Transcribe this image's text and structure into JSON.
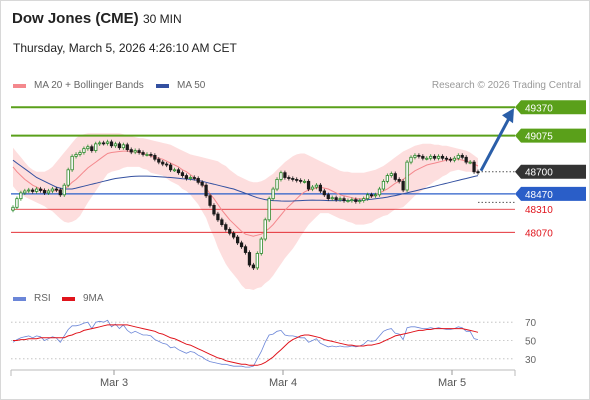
{
  "header": {
    "title": "Dow Jones (CME)",
    "timeframe": "30 MIN",
    "datetime": "Thursday, March 5, 2026 4:26:10 AM CET",
    "credit": "Research © 2026 Trading Central"
  },
  "colors": {
    "ma20": "#f4888d",
    "band_fill": "#fdd8d8",
    "ma50": "#3350a0",
    "resistance": "#5aa01a",
    "support_current": "#2a5ec8",
    "support": "#e0141c",
    "current": "#333333",
    "candle": "#2a8a2a",
    "rsi": "#6b86d8",
    "rsi_ma": "#e0141c",
    "arrow": "#2a5ea8"
  },
  "legend": {
    "ma20_label": "MA 20 + Bollinger Bands",
    "ma50_label": "MA 50",
    "rsi_label": "RSI",
    "rsi_ma_label": "9MA"
  },
  "chart_data": {
    "type": "candlestick",
    "price_range": [
      47470,
      49550
    ],
    "levels": [
      {
        "value": 49370,
        "label": "49370",
        "kind": "resistance"
      },
      {
        "value": 49075,
        "label": "49075",
        "kind": "resistance"
      },
      {
        "value": 48700,
        "label": "48700",
        "kind": "current"
      },
      {
        "value": 48470,
        "label": "48470",
        "kind": "support_current"
      },
      {
        "value": 48310,
        "label": "48310",
        "kind": "support"
      },
      {
        "value": 48070,
        "label": "48070",
        "kind": "support"
      }
    ],
    "x_ticks": [
      "Mar 3",
      "Mar 4",
      "Mar 5"
    ],
    "close": [
      48330,
      48420,
      48480,
      48500,
      48510,
      48495,
      48520,
      48505,
      48480,
      48500,
      48520,
      48510,
      48460,
      48560,
      48720,
      48860,
      48880,
      48900,
      48940,
      48960,
      48920,
      48990,
      49000,
      48995,
      49010,
      48970,
      48990,
      48950,
      48980,
      48930,
      48905,
      48920,
      48900,
      48880,
      48880,
      48870,
      48830,
      48800,
      48780,
      48770,
      48720,
      48720,
      48690,
      48660,
      48630,
      48640,
      48630,
      48590,
      48560,
      48450,
      48350,
      48260,
      48200,
      48150,
      48100,
      48060,
      48020,
      47960,
      47920,
      47860,
      47730,
      47700,
      47850,
      48000,
      48200,
      48420,
      48520,
      48620,
      48690,
      48640,
      48630,
      48620,
      48610,
      48600,
      48600,
      48520,
      48540,
      48560,
      48500,
      48460,
      48420,
      48430,
      48410,
      48420,
      48400,
      48400,
      48410,
      48390,
      48400,
      48420,
      48460,
      48450,
      48460,
      48520,
      48600,
      48660,
      48680,
      48620,
      48600,
      48510,
      48800,
      48850,
      48870,
      48860,
      48840,
      48840,
      48860,
      48840,
      48860,
      48840,
      48830,
      48820,
      48840,
      48870,
      48850,
      48800,
      48800,
      48700,
      48690
    ],
    "ma20": [
      48750,
      48700,
      48660,
      48620,
      48590,
      48560,
      48540,
      48520,
      48505,
      48500,
      48500,
      48505,
      48510,
      48520,
      48550,
      48590,
      48620,
      48660,
      48700,
      48740,
      48770,
      48800,
      48830,
      48860,
      48890,
      48900,
      48905,
      48910,
      48915,
      48915,
      48910,
      48905,
      48900,
      48890,
      48880,
      48860,
      48850,
      48840,
      48830,
      48810,
      48790,
      48770,
      48750,
      48720,
      48700,
      48670,
      48640,
      48610,
      48570,
      48530,
      48470,
      48420,
      48360,
      48300,
      48250,
      48200,
      48160,
      48120,
      48080,
      48050,
      48040,
      48030,
      48040,
      48050,
      48080,
      48110,
      48150,
      48200,
      48250,
      48300,
      48340,
      48380,
      48420,
      48460,
      48490,
      48510,
      48520,
      48530,
      48540,
      48530,
      48520,
      48500,
      48480,
      48460,
      48450,
      48440,
      48430,
      48420,
      48420,
      48420,
      48430,
      48440,
      48460,
      48480,
      48500,
      48520,
      48550,
      48580,
      48600,
      48620,
      48650,
      48680,
      48710,
      48730,
      48750,
      48770,
      48780,
      48790,
      48800,
      48810,
      48820,
      48830,
      48830,
      48830,
      48820,
      48810,
      48800,
      48780,
      48760
    ],
    "band_upper": [
      48950,
      48900,
      48850,
      48800,
      48750,
      48720,
      48700,
      48700,
      48700,
      48720,
      48750,
      48800,
      48850,
      48900,
      48950,
      49000,
      49050,
      49080,
      49090,
      49100,
      49100,
      49100,
      49100,
      49100,
      49100,
      49100,
      49100,
      49100,
      49090,
      49080,
      49070,
      49060,
      49050,
      49050,
      49040,
      49030,
      49020,
      49010,
      49000,
      48990,
      48980,
      48960,
      48940,
      48920,
      48900,
      48880,
      48870,
      48860,
      48850,
      48840,
      48830,
      48820,
      48810,
      48780,
      48760,
      48720,
      48690,
      48660,
      48640,
      48620,
      48600,
      48590,
      48590,
      48600,
      48620,
      48650,
      48680,
      48720,
      48760,
      48800,
      48830,
      48860,
      48880,
      48890,
      48890,
      48870,
      48850,
      48830,
      48810,
      48790,
      48770,
      48750,
      48730,
      48710,
      48700,
      48700,
      48690,
      48690,
      48690,
      48690,
      48700,
      48710,
      48720,
      48740,
      48760,
      48790,
      48820,
      48850,
      48880,
      48910,
      48930,
      48950,
      48970,
      48980,
      48990,
      48990,
      48990,
      48980,
      48980,
      48970,
      48970,
      48960,
      48950,
      48940,
      48930,
      48920,
      48900,
      48870,
      48840
    ],
    "band_lower": [
      48550,
      48500,
      48470,
      48440,
      48420,
      48400,
      48380,
      48360,
      48340,
      48310,
      48290,
      48250,
      48210,
      48180,
      48170,
      48180,
      48200,
      48240,
      48310,
      48380,
      48440,
      48500,
      48560,
      48620,
      48680,
      48700,
      48710,
      48720,
      48740,
      48750,
      48750,
      48750,
      48750,
      48730,
      48720,
      48690,
      48680,
      48670,
      48660,
      48630,
      48600,
      48580,
      48560,
      48520,
      48500,
      48460,
      48410,
      48360,
      48290,
      48220,
      48110,
      48020,
      47910,
      47820,
      47740,
      47680,
      47630,
      47580,
      47520,
      47480,
      47480,
      47470,
      47490,
      47500,
      47540,
      47570,
      47620,
      47680,
      47740,
      47800,
      47850,
      47900,
      47960,
      48030,
      48090,
      48150,
      48190,
      48230,
      48270,
      48270,
      48270,
      48250,
      48230,
      48210,
      48200,
      48180,
      48170,
      48150,
      48150,
      48150,
      48160,
      48170,
      48200,
      48220,
      48240,
      48250,
      48280,
      48310,
      48320,
      48330,
      48370,
      48410,
      48450,
      48480,
      48510,
      48550,
      48570,
      48600,
      48620,
      48650,
      48670,
      48700,
      48710,
      48720,
      48710,
      48700,
      48700,
      48690,
      48680
    ],
    "ma50": [
      48820,
      48790,
      48760,
      48730,
      48700,
      48670,
      48640,
      48620,
      48600,
      48580,
      48560,
      48540,
      48530,
      48520,
      48520,
      48520,
      48530,
      48540,
      48550,
      48560,
      48570,
      48580,
      48590,
      48600,
      48610,
      48620,
      48630,
      48635,
      48640,
      48645,
      48650,
      48652,
      48655,
      48655,
      48655,
      48652,
      48650,
      48648,
      48645,
      48642,
      48640,
      48636,
      48632,
      48628,
      48624,
      48620,
      48615,
      48610,
      48600,
      48590,
      48580,
      48570,
      48560,
      48550,
      48540,
      48530,
      48520,
      48505,
      48490,
      48475,
      48460,
      48445,
      48430,
      48420,
      48410,
      48405,
      48400,
      48398,
      48396,
      48395,
      48395,
      48396,
      48398,
      48400,
      48402,
      48404,
      48405,
      48404,
      48403,
      48402,
      48400,
      48400,
      48400,
      48400,
      48400,
      48400,
      48400,
      48402,
      48404,
      48406,
      48410,
      48414,
      48418,
      48424,
      48430,
      48436,
      48444,
      48452,
      48460,
      48470,
      48480,
      48490,
      48500,
      48510,
      48520,
      48530,
      48540,
      48550,
      48560,
      48570,
      48580,
      48590,
      48600,
      48610,
      48620,
      48630,
      48640,
      48650,
      48660
    ],
    "rsi": {
      "levels": [
        70,
        50,
        30
      ],
      "range": [
        20,
        80
      ],
      "rsi": [
        48,
        51,
        53,
        54,
        55,
        53,
        55,
        54,
        50,
        52,
        54,
        53,
        48,
        55,
        62,
        66,
        66,
        67,
        69,
        70,
        63,
        70,
        71,
        70,
        72,
        65,
        68,
        63,
        67,
        61,
        58,
        60,
        58,
        56,
        56,
        55,
        51,
        49,
        47,
        46,
        42,
        43,
        40,
        38,
        36,
        38,
        37,
        34,
        32,
        29,
        27,
        26,
        25,
        24,
        24,
        23,
        22,
        22,
        22,
        21,
        21,
        22,
        30,
        38,
        48,
        56,
        57,
        60,
        61,
        56,
        55,
        55,
        54,
        53,
        53,
        48,
        50,
        52,
        47,
        45,
        43,
        44,
        43,
        44,
        43,
        43,
        44,
        43,
        44,
        46,
        50,
        49,
        50,
        55,
        60,
        62,
        63,
        58,
        57,
        51,
        64,
        65,
        65,
        64,
        63,
        63,
        64,
        63,
        64,
        63,
        62,
        62,
        63,
        65,
        64,
        60,
        60,
        52,
        51
      ],
      "ma": [
        50,
        50,
        51,
        51,
        52,
        52,
        52,
        53,
        53,
        53,
        53,
        53,
        53,
        53,
        55,
        56,
        58,
        59,
        61,
        62,
        63,
        64,
        65,
        66,
        67,
        67,
        67,
        67,
        67,
        67,
        66,
        65,
        64,
        63,
        62,
        61,
        60,
        58,
        57,
        55,
        53,
        52,
        50,
        48,
        46,
        45,
        43,
        41,
        39,
        37,
        35,
        33,
        31,
        30,
        28,
        27,
        26,
        25,
        24,
        24,
        23,
        23,
        23,
        24,
        26,
        29,
        32,
        36,
        40,
        44,
        48,
        51,
        53,
        55,
        56,
        56,
        55,
        54,
        53,
        51,
        50,
        49,
        48,
        47,
        46,
        45,
        45,
        44,
        44,
        44,
        45,
        45,
        46,
        47,
        49,
        51,
        53,
        55,
        56,
        57,
        58,
        59,
        60,
        61,
        61,
        62,
        62,
        63,
        63,
        63,
        63,
        63,
        63,
        63,
        63,
        62,
        61,
        60,
        59
      ]
    }
  }
}
